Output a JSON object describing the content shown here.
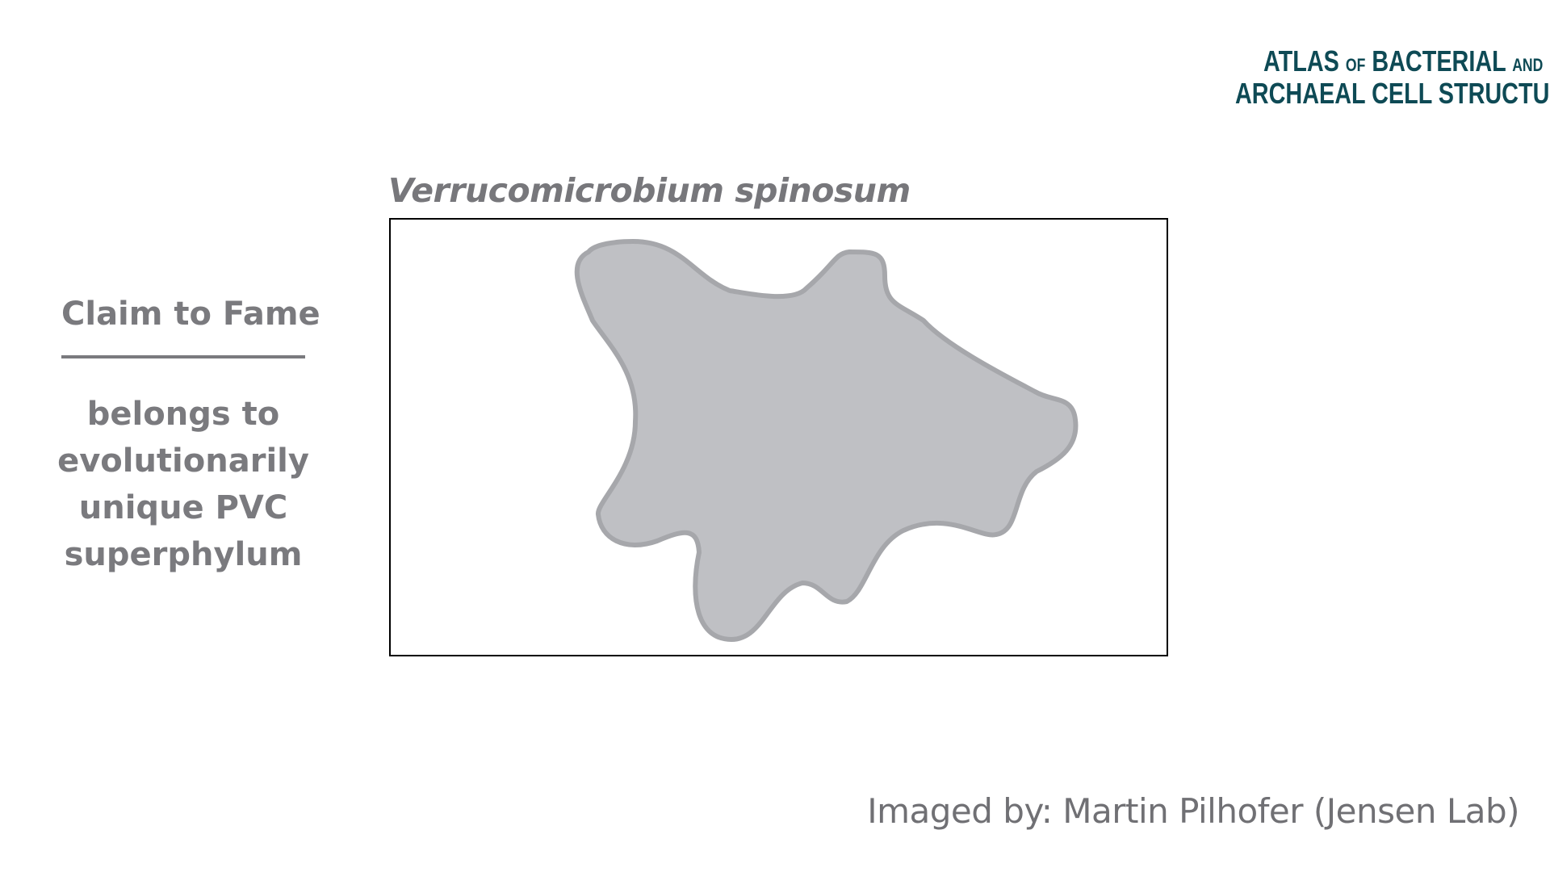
{
  "logo": {
    "word1": "Atlas",
    "word2": "of",
    "word3": "Bacterial",
    "word4": "and",
    "word5": "Archaeal",
    "word6": "Cell",
    "word7": "Structure"
  },
  "species_title": "Verrucomicrobium spinosum",
  "claim": {
    "heading": "Claim to Fame",
    "lines": [
      "belongs to",
      "evolutionarily",
      "unique PVC",
      "superphylum"
    ]
  },
  "credit": "Imaged by: Martin Pilhofer (Jensen Lab)",
  "colors": {
    "cell_fill": "#bfc0c4",
    "cell_outline": "#a6a7ab",
    "text_gray": "#7a7a7e",
    "logo_teal": "#0e4a55",
    "frame_border": "#000000"
  }
}
